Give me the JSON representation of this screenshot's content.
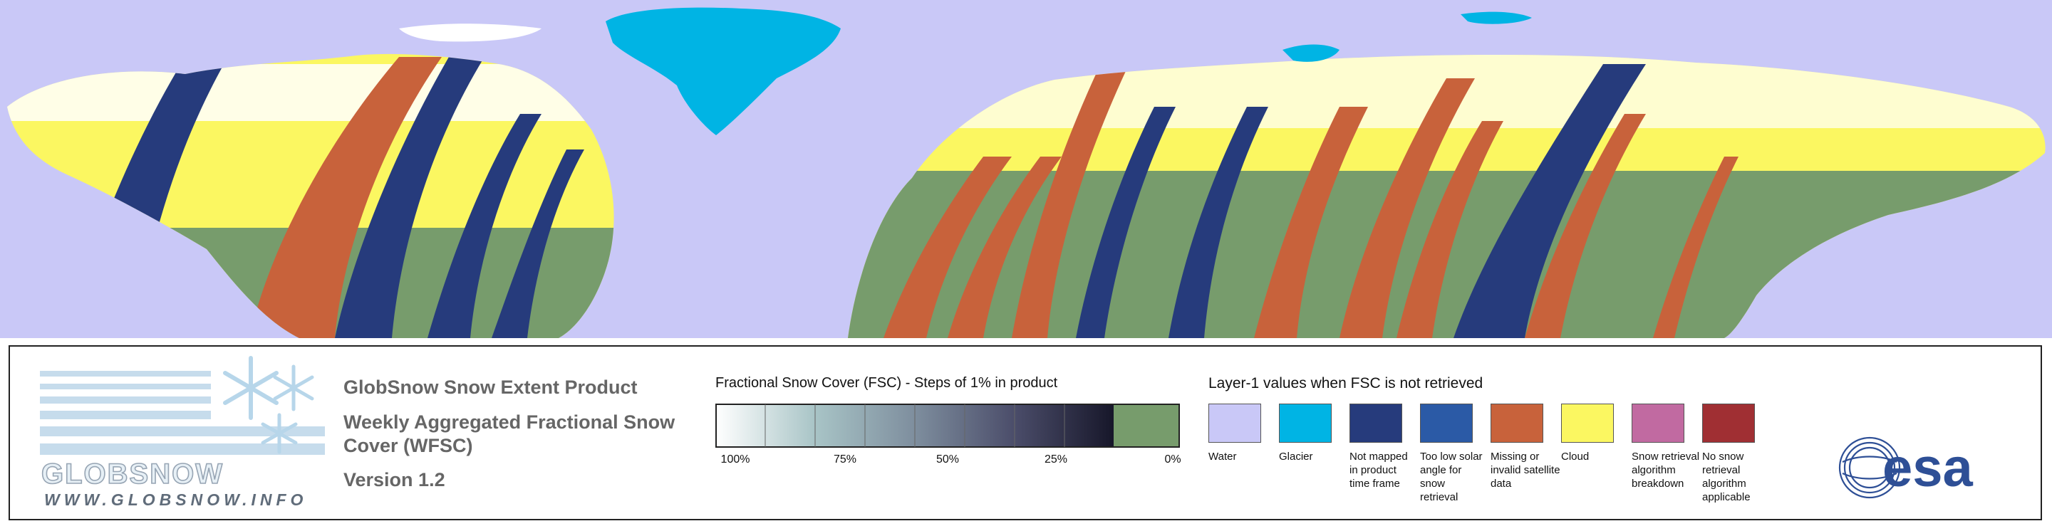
{
  "colors": {
    "water": "#c9c8f7",
    "glacier": "#00b4e4",
    "not_mapped": "#263b7c",
    "low_sun": "#2b5aa6",
    "missing": "#c8623b",
    "cloud": "#fbf761",
    "breakdown": "#c16aa1",
    "not_applicable": "#a02f33",
    "no_snow": "#779c6c",
    "snow_full": "#ffffff"
  },
  "brand": {
    "logo_text": "GLOBSNOW",
    "url": "WWW.GLOBSNOW.INFO"
  },
  "titles": {
    "product": "GlobSnow Snow Extent Product",
    "product_type": "Weekly Aggregated Fractional Snow Cover (WFSC)",
    "version": "Version 1.2"
  },
  "fsc_legend": {
    "title": "Fractional Snow Cover (FSC) - Steps of 1% in product",
    "ticks": [
      "100%",
      "75%",
      "50%",
      "25%",
      "0%"
    ]
  },
  "layer1_legend": {
    "title": "Layer-1 values when FSC is not retrieved",
    "categories": [
      {
        "label": "Water",
        "color": "#c9c8f7"
      },
      {
        "label": "Glacier",
        "color": "#00b4e4"
      },
      {
        "label": "Not mapped in product time frame",
        "color": "#263b7c"
      },
      {
        "label": "Too low solar angle for snow retrieval",
        "color": "#2b5aa6"
      },
      {
        "label": "Missing or invalid satellite data",
        "color": "#c8623b"
      },
      {
        "label": "Cloud",
        "color": "#fbf761"
      },
      {
        "label": "Snow retrieval algorithm breakdown",
        "color": "#c16aa1"
      },
      {
        "label": "No snow retrieval algorithm applicable",
        "color": "#a02f33"
      }
    ]
  },
  "partner_logo": {
    "text": "esa"
  }
}
